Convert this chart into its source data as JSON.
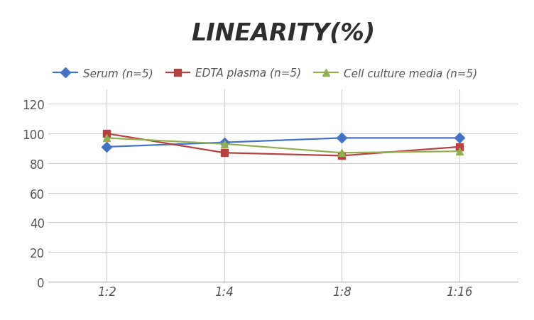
{
  "title": "LINEARITY(%)",
  "x_labels": [
    "1:2",
    "1:4",
    "1:8",
    "1:16"
  ],
  "x_positions": [
    0,
    1,
    2,
    3
  ],
  "series": [
    {
      "label": "Serum (n=5)",
      "color": "#4472C4",
      "marker": "D",
      "values": [
        91,
        94,
        97,
        97
      ]
    },
    {
      "label": "EDTA plasma (n=5)",
      "color": "#B84040",
      "marker": "s",
      "values": [
        100,
        87,
        85,
        91
      ]
    },
    {
      "label": "Cell culture media (n=5)",
      "color": "#92B050",
      "marker": "^",
      "values": [
        97,
        93,
        87,
        88
      ]
    }
  ],
  "ylim": [
    0,
    130
  ],
  "yticks": [
    0,
    20,
    40,
    60,
    80,
    100,
    120
  ],
  "grid_color": "#D0D0D0",
  "background_color": "#FFFFFF",
  "title_fontsize": 24,
  "legend_fontsize": 11,
  "tick_fontsize": 12
}
